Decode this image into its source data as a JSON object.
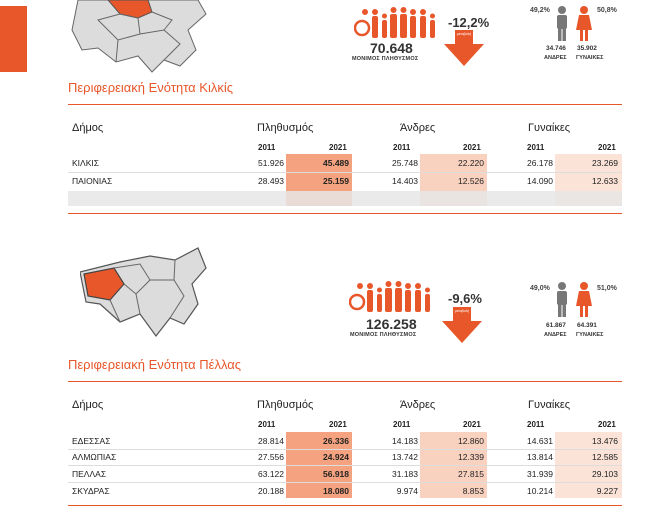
{
  "colors": {
    "accent": "#e8572a",
    "strong_fill": "#f4a27f",
    "light_fill": "#f9d2bf",
    "lighter_fill": "#fbe3d7",
    "grey_fill": "#e6e6e6"
  },
  "kilkis": {
    "region_title": "Περιφερειακή Ενότητα Κιλκίς",
    "population_total": "70.648",
    "population_caption": "ΜΟΝΙΜΟΣ ΠΛΗΘΥΣΜΟΣ",
    "change_pct": "-12,2%",
    "arrow_caption": "μεταβολή",
    "male_pct": "49,2%",
    "female_pct": "50,8%",
    "male_count": "34.746",
    "female_count": "35.902",
    "male_label": "ΑΝΔΡΕΣ",
    "female_label": "ΓΥΝΑΙΚΕΣ",
    "table": {
      "h_municipality": "Δήμος",
      "h_population": "Πληθυσμός",
      "h_men": "Άνδρες",
      "h_women": "Γυναίκες",
      "years": [
        "2011",
        "2021",
        "2011",
        "2021",
        "2011",
        "2021"
      ],
      "rows": [
        [
          "ΚΙΛΚΙΣ",
          "51.926",
          "45.489",
          "25.748",
          "22.220",
          "26.178",
          "23.269"
        ],
        [
          "ΠΑΙΟΝΙΑΣ",
          "28.493",
          "25.159",
          "14.403",
          "12.526",
          "14.090",
          "12.633"
        ]
      ]
    }
  },
  "pella": {
    "region_title": "Περιφερειακή Ενότητα Πέλλας",
    "population_total": "126.258",
    "population_caption": "ΜΟΝΙΜΟΣ ΠΛΗΘΥΣΜΟΣ",
    "change_pct": "-9,6%",
    "arrow_caption": "μεταβολή",
    "male_pct": "49,0%",
    "female_pct": "51,0%",
    "male_count": "61.867",
    "female_count": "64.391",
    "male_label": "ΑΝΔΡΕΣ",
    "female_label": "ΓΥΝΑΙΚΕΣ",
    "table": {
      "h_municipality": "Δήμος",
      "h_population": "Πληθυσμός",
      "h_men": "Άνδρες",
      "h_women": "Γυναίκες",
      "years": [
        "2011",
        "2021",
        "2011",
        "2021",
        "2011",
        "2021"
      ],
      "rows": [
        [
          "ΕΔΕΣΣΑΣ",
          "28.814",
          "26.336",
          "14.183",
          "12.860",
          "14.631",
          "13.476"
        ],
        [
          "ΑΛΜΩΠΙΑΣ",
          "27.556",
          "24.924",
          "13.742",
          "12.339",
          "13.814",
          "12.585"
        ],
        [
          "ΠΕΛΛΑΣ",
          "63.122",
          "56.918",
          "31.183",
          "27.815",
          "31.939",
          "29.103"
        ],
        [
          "ΣΚΥΔΡΑΣ",
          "20.188",
          "18.080",
          "9.974",
          "8.853",
          "10.214",
          "9.227"
        ]
      ]
    }
  }
}
